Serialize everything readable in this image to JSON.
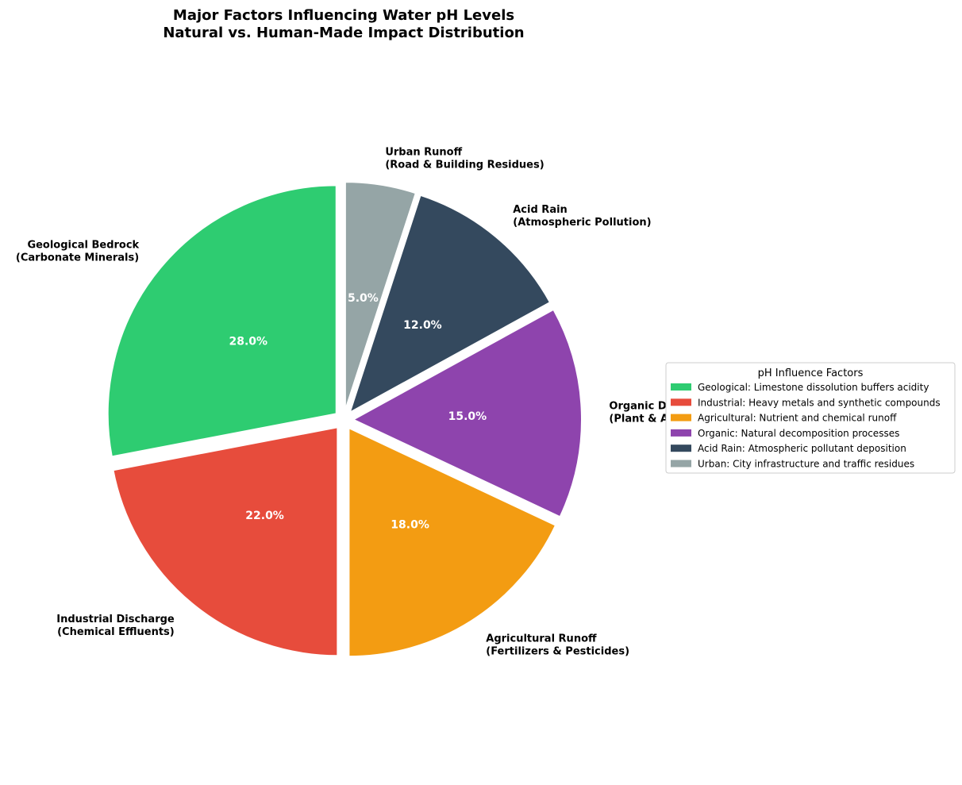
{
  "chart_data": {
    "type": "pie",
    "title": "Major Factors Influencing Water pH Levels",
    "subtitle": "Natural vs. Human-Made Impact Distribution",
    "slices": [
      {
        "key": "geological",
        "label": [
          "Geological Bedrock",
          "(Carbonate Minerals)"
        ],
        "value": 28.0,
        "pct_label": "28.0%",
        "color": "#2ecc71"
      },
      {
        "key": "industrial",
        "label": [
          "Industrial Discharge",
          "(Chemical Effluents)"
        ],
        "value": 22.0,
        "pct_label": "22.0%",
        "color": "#e74c3c"
      },
      {
        "key": "agricultural",
        "label": [
          "Agricultural Runoff",
          "(Fertilizers & Pesticides)"
        ],
        "value": 18.0,
        "pct_label": "18.0%",
        "color": "#f39c12"
      },
      {
        "key": "organic",
        "label": [
          "Organic Decomposition",
          "(Plant & Animal Matter)"
        ],
        "value": 15.0,
        "pct_label": "15.0%",
        "color": "#8e44ad"
      },
      {
        "key": "acid-rain",
        "label": [
          "Acid Rain",
          "(Atmospheric Pollution)"
        ],
        "value": 12.0,
        "pct_label": "12.0%",
        "color": "#34495e"
      },
      {
        "key": "urban",
        "label": [
          "Urban Runoff",
          "(Road & Building Residues)"
        ],
        "value": 5.0,
        "pct_label": "5.0%",
        "color": "#95a5a6"
      }
    ],
    "legend": {
      "title": "pH Influence Factors",
      "placement": "right",
      "entries": [
        "Geological: Limestone dissolution buffers acidity",
        "Industrial: Heavy metals and synthetic compounds",
        "Agricultural: Nutrient and chemical runoff",
        "Organic: Natural decomposition processes",
        "Acid Rain: Atmospheric pollutant deposition",
        "Urban: City infrastructure and traffic residues"
      ]
    }
  }
}
